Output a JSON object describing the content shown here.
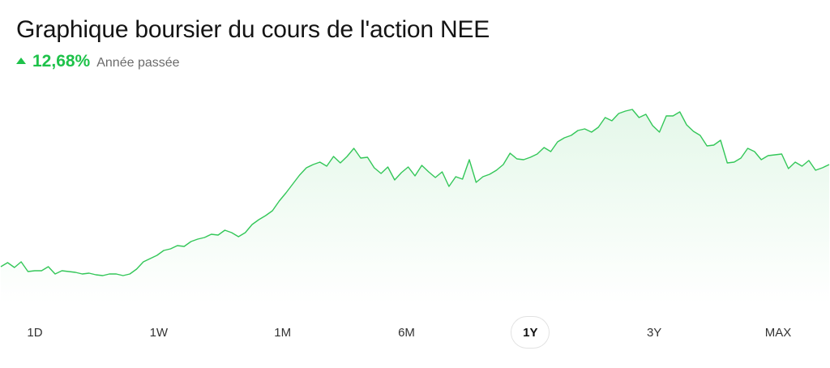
{
  "header": {
    "title": "Graphique boursier du cours de l'action NEE",
    "change_percent": "12,68%",
    "change_period": "Année passée",
    "change_direction_icon": "triangle-up-icon",
    "positive_color": "#1ec24a"
  },
  "range_selector": {
    "options": [
      "1D",
      "1W",
      "1M",
      "6M",
      "1Y",
      "3Y",
      "MAX"
    ],
    "selected": "1Y"
  },
  "chart_data": {
    "type": "area",
    "title": "",
    "xlabel": "",
    "ylabel": "",
    "grid": false,
    "line_color": "#34c759",
    "fill_color": "#e8f8ea",
    "values": [
      0.66,
      0.71,
      0.65,
      0.72,
      0.6,
      0.61,
      0.61,
      0.66,
      0.57,
      0.61,
      0.6,
      0.59,
      0.57,
      0.58,
      0.56,
      0.55,
      0.57,
      0.57,
      0.55,
      0.57,
      0.63,
      0.72,
      0.76,
      0.8,
      0.86,
      0.88,
      0.92,
      0.91,
      0.97,
      1.0,
      1.02,
      1.06,
      1.05,
      1.11,
      1.08,
      1.03,
      1.08,
      1.18,
      1.24,
      1.29,
      1.35,
      1.47,
      1.57,
      1.68,
      1.79,
      1.88,
      1.92,
      1.95,
      1.9,
      2.02,
      1.94,
      2.02,
      2.12,
      2.0,
      2.01,
      1.88,
      1.81,
      1.89,
      1.73,
      1.82,
      1.89,
      1.78,
      1.91,
      1.83,
      1.76,
      1.83,
      1.65,
      1.77,
      1.74,
      1.98,
      1.7,
      1.77,
      1.8,
      1.85,
      1.92,
      2.06,
      1.99,
      1.98,
      2.01,
      2.05,
      2.13,
      2.08,
      2.2,
      2.25,
      2.28,
      2.34,
      2.36,
      2.32,
      2.38,
      2.5,
      2.46,
      2.55,
      2.58,
      2.6,
      2.5,
      2.54,
      2.4,
      2.32,
      2.52,
      2.52,
      2.57,
      2.41,
      2.33,
      2.28,
      2.15,
      2.16,
      2.22,
      1.94,
      1.95,
      2.0,
      2.12,
      2.08,
      1.98,
      2.03,
      2.04,
      2.05,
      1.87,
      1.95,
      1.9,
      1.97,
      1.85,
      1.88,
      1.92
    ]
  }
}
